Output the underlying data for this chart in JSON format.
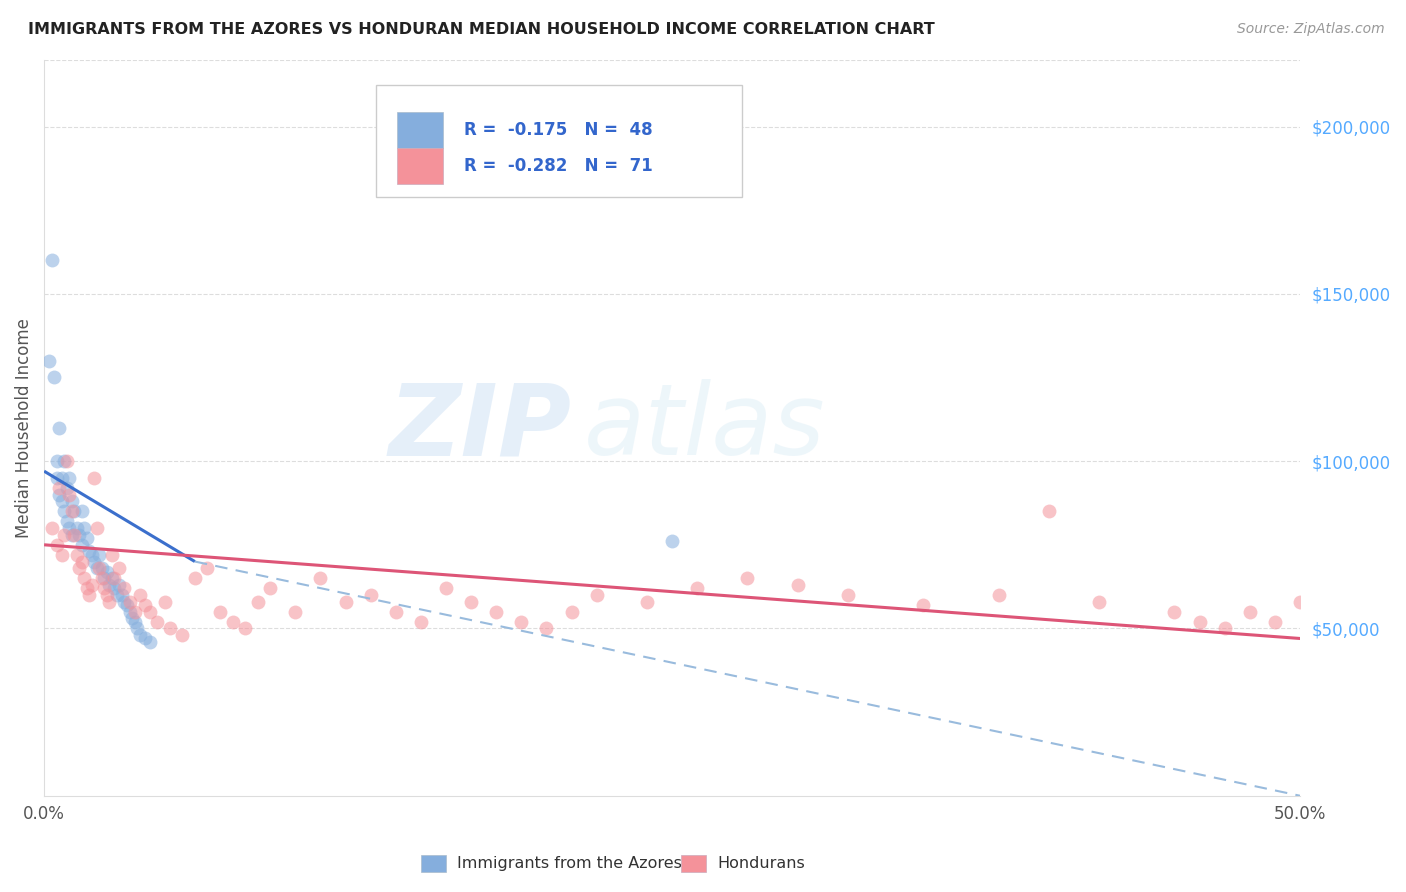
{
  "title": "IMMIGRANTS FROM THE AZORES VS HONDURAN MEDIAN HOUSEHOLD INCOME CORRELATION CHART",
  "source": "Source: ZipAtlas.com",
  "ylabel": "Median Household Income",
  "xlim": [
    0.0,
    0.5
  ],
  "ylim": [
    0,
    220000
  ],
  "yticks_right": [
    50000,
    100000,
    150000,
    200000
  ],
  "ytick_labels_right": [
    "$50,000",
    "$100,000",
    "$150,000",
    "$200,000"
  ],
  "legend_label1": "Immigrants from the Azores",
  "legend_label2": "Hondurans",
  "color_blue": "#85AEDD",
  "color_pink": "#F4929A",
  "watermark_zip": "ZIP",
  "watermark_atlas": "atlas",
  "blue_line_x0": 0.0,
  "blue_line_y0": 97000,
  "blue_line_x1": 0.06,
  "blue_line_y1": 70000,
  "pink_line_x0": 0.0,
  "pink_line_y0": 75000,
  "pink_line_x1": 0.5,
  "pink_line_y1": 47000,
  "dash_line_x0": 0.06,
  "dash_line_y0": 70000,
  "dash_line_x1": 0.5,
  "dash_line_y1": 0,
  "blue_x": [
    0.002,
    0.003,
    0.004,
    0.005,
    0.005,
    0.006,
    0.006,
    0.007,
    0.007,
    0.008,
    0.008,
    0.009,
    0.009,
    0.01,
    0.01,
    0.011,
    0.011,
    0.012,
    0.013,
    0.014,
    0.015,
    0.015,
    0.016,
    0.017,
    0.018,
    0.019,
    0.02,
    0.021,
    0.022,
    0.023,
    0.024,
    0.025,
    0.026,
    0.027,
    0.028,
    0.029,
    0.03,
    0.031,
    0.032,
    0.033,
    0.034,
    0.035,
    0.036,
    0.037,
    0.038,
    0.04,
    0.042,
    0.25
  ],
  "blue_y": [
    130000,
    160000,
    125000,
    100000,
    95000,
    110000,
    90000,
    95000,
    88000,
    100000,
    85000,
    92000,
    82000,
    95000,
    80000,
    88000,
    78000,
    85000,
    80000,
    78000,
    85000,
    75000,
    80000,
    77000,
    73000,
    72000,
    70000,
    68000,
    72000,
    68000,
    65000,
    67000,
    63000,
    65000,
    62000,
    60000,
    63000,
    60000,
    58000,
    57000,
    55000,
    53000,
    52000,
    50000,
    48000,
    47000,
    46000,
    76000
  ],
  "pink_x": [
    0.003,
    0.005,
    0.006,
    0.007,
    0.008,
    0.009,
    0.01,
    0.011,
    0.012,
    0.013,
    0.014,
    0.015,
    0.016,
    0.017,
    0.018,
    0.019,
    0.02,
    0.021,
    0.022,
    0.023,
    0.024,
    0.025,
    0.026,
    0.027,
    0.028,
    0.03,
    0.032,
    0.034,
    0.036,
    0.038,
    0.04,
    0.042,
    0.045,
    0.048,
    0.05,
    0.055,
    0.06,
    0.065,
    0.07,
    0.075,
    0.08,
    0.085,
    0.09,
    0.1,
    0.11,
    0.12,
    0.13,
    0.14,
    0.15,
    0.16,
    0.17,
    0.18,
    0.19,
    0.2,
    0.21,
    0.22,
    0.24,
    0.26,
    0.28,
    0.3,
    0.32,
    0.35,
    0.38,
    0.4,
    0.42,
    0.45,
    0.46,
    0.47,
    0.48,
    0.49,
    0.5
  ],
  "pink_y": [
    80000,
    75000,
    92000,
    72000,
    78000,
    100000,
    90000,
    85000,
    78000,
    72000,
    68000,
    70000,
    65000,
    62000,
    60000,
    63000,
    95000,
    80000,
    68000,
    65000,
    62000,
    60000,
    58000,
    72000,
    65000,
    68000,
    62000,
    58000,
    55000,
    60000,
    57000,
    55000,
    52000,
    58000,
    50000,
    48000,
    65000,
    68000,
    55000,
    52000,
    50000,
    58000,
    62000,
    55000,
    65000,
    58000,
    60000,
    55000,
    52000,
    62000,
    58000,
    55000,
    52000,
    50000,
    55000,
    60000,
    58000,
    62000,
    65000,
    63000,
    60000,
    57000,
    60000,
    85000,
    58000,
    55000,
    52000,
    50000,
    55000,
    52000,
    58000
  ]
}
